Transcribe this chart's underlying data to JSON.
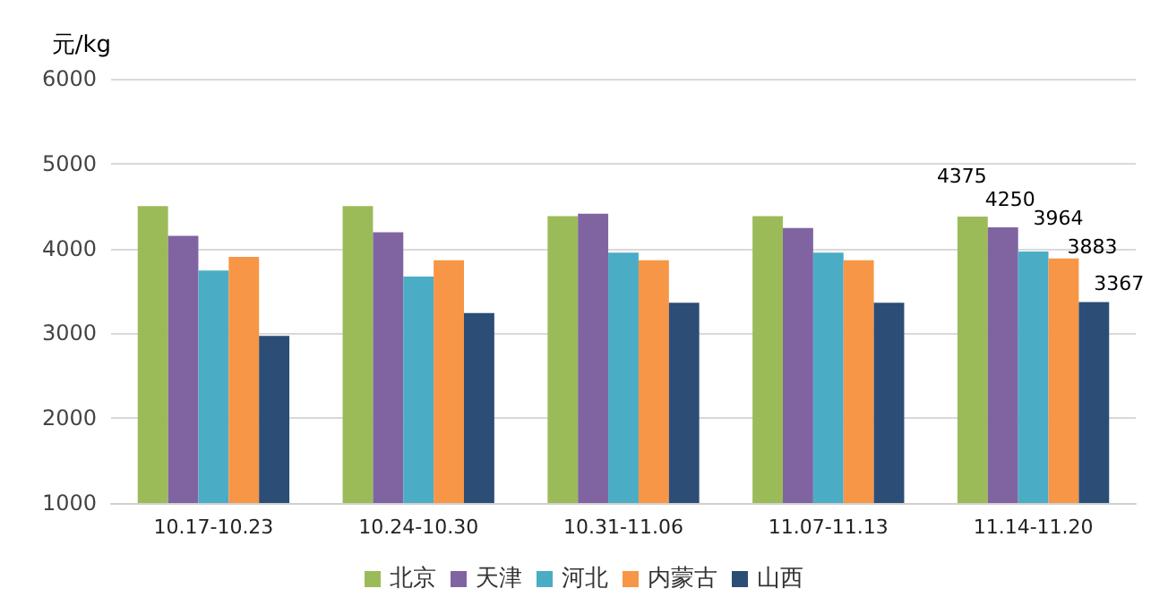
{
  "chart_data": {
    "type": "bar",
    "ylabel": "元/kg",
    "categories": [
      "10.17-10.23",
      "10.24-10.30",
      "10.31-11.06",
      "11.07-11.13",
      "11.14-11.20"
    ],
    "series": [
      {
        "name": "北京",
        "color": "#9bbb59",
        "values": [
          4500,
          4500,
          4380,
          4380,
          4375
        ],
        "value_labels": [
          null,
          null,
          null,
          null,
          "4375"
        ]
      },
      {
        "name": "天津",
        "color": "#8064a2",
        "values": [
          4150,
          4190,
          4410,
          4240,
          4250
        ],
        "value_labels": [
          null,
          null,
          null,
          null,
          "4250"
        ]
      },
      {
        "name": "河北",
        "color": "#4bacc6",
        "values": [
          3740,
          3670,
          3950,
          3950,
          3964
        ],
        "value_labels": [
          null,
          null,
          null,
          null,
          "3964"
        ]
      },
      {
        "name": "内蒙古",
        "color": "#f79646",
        "values": [
          3900,
          3860,
          3860,
          3860,
          3883
        ],
        "value_labels": [
          null,
          null,
          null,
          null,
          "3883"
        ]
      },
      {
        "name": "山西",
        "color": "#2c4d75",
        "values": [
          2970,
          3240,
          3360,
          3360,
          3367
        ],
        "value_labels": [
          null,
          null,
          null,
          null,
          "3367"
        ]
      }
    ],
    "ylim": [
      1000,
      6000
    ],
    "yticks": [
      1000,
      2000,
      3000,
      4000,
      5000,
      6000
    ],
    "grid": "y",
    "legend": "bottom"
  }
}
